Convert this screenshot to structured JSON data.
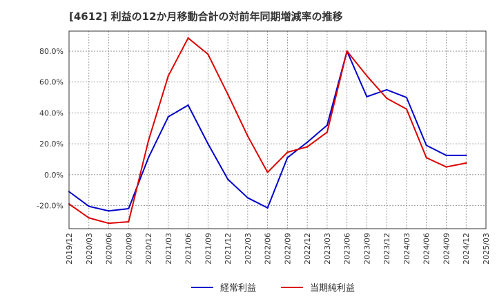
{
  "chart_data": {
    "type": "line",
    "title": "[4612]  利益の12か月移動合計の対前年同期増減率の推移",
    "xlabel": "",
    "ylabel": "",
    "ylim": [
      -35,
      93
    ],
    "yticks": [
      -20,
      0,
      20,
      40,
      60,
      80
    ],
    "ytick_labels": [
      "-20.0%",
      "0.0%",
      "20.0%",
      "40.0%",
      "60.0%",
      "80.0%"
    ],
    "x_ticks": [
      "2019/12",
      "2020/03",
      "2020/06",
      "2020/09",
      "2020/12",
      "2021/03",
      "2021/06",
      "2021/09",
      "2021/12",
      "2022/03",
      "2022/06",
      "2022/09",
      "2022/12",
      "2023/03",
      "2023/06",
      "2023/09",
      "2023/12",
      "2024/03",
      "2024/06",
      "2024/09",
      "2024/12",
      "2025/03"
    ],
    "grid": true,
    "legend_position": "bottom",
    "series": [
      {
        "name": "経常利益",
        "color": "#0000cc",
        "values": [
          -11,
          -20.5,
          -23.5,
          -22,
          11,
          37.5,
          45,
          20,
          -3,
          -15,
          -21.5,
          11,
          21,
          32,
          80,
          50.5,
          55,
          50,
          19,
          12.5,
          12.5,
          null
        ]
      },
      {
        "name": "当期純利益",
        "color": "#dd0000",
        "values": [
          -19,
          -28,
          -31.5,
          -30.5,
          22,
          64,
          88.5,
          78,
          52,
          25,
          1.5,
          14.5,
          18,
          27.5,
          80,
          64,
          49.5,
          42.5,
          11,
          5,
          7.5,
          null
        ]
      }
    ]
  }
}
